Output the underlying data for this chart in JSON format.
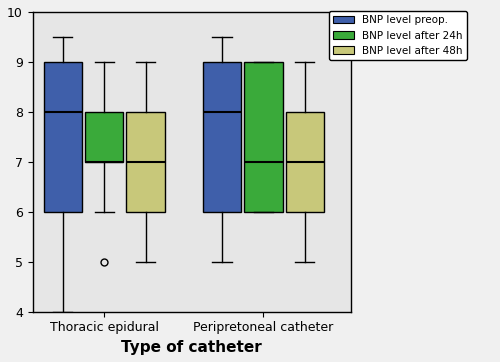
{
  "xlabel": "Type of catheter",
  "ylim": [
    4,
    10
  ],
  "yticks": [
    4,
    5,
    6,
    7,
    8,
    9,
    10
  ],
  "groups": [
    "Thoracic epidural",
    "Peripretoneal catheter"
  ],
  "series_labels": [
    "BNP level preop.",
    "BNP level after 24h",
    "BNP level after 48h"
  ],
  "series_colors": [
    "#3f5faa",
    "#3aaa3a",
    "#c8c87a"
  ],
  "box_data": {
    "Thoracic epidural": [
      {
        "whislo": 4.0,
        "q1": 6.0,
        "med": 8.0,
        "q3": 9.0,
        "whishi": 9.5,
        "fliers": []
      },
      {
        "whislo": 6.0,
        "q1": 7.0,
        "med": 7.0,
        "q3": 8.0,
        "whishi": 9.0,
        "fliers": [
          5.0
        ]
      },
      {
        "whislo": 5.0,
        "q1": 6.0,
        "med": 7.0,
        "q3": 8.0,
        "whishi": 9.0,
        "fliers": []
      }
    ],
    "Peripretoneal catheter": [
      {
        "whislo": 5.0,
        "q1": 6.0,
        "med": 8.0,
        "q3": 9.0,
        "whishi": 9.5,
        "fliers": []
      },
      {
        "whislo": 6.0,
        "q1": 6.0,
        "med": 7.0,
        "q3": 9.0,
        "whishi": 9.0,
        "fliers": []
      },
      {
        "whislo": 5.0,
        "q1": 6.0,
        "med": 7.0,
        "q3": 8.0,
        "whishi": 9.0,
        "fliers": []
      }
    ]
  },
  "background_color": "#e6e6e6",
  "box_width": 0.48,
  "group_positions": [
    1.0,
    3.0
  ],
  "series_offsets": [
    -0.52,
    0.0,
    0.52
  ]
}
